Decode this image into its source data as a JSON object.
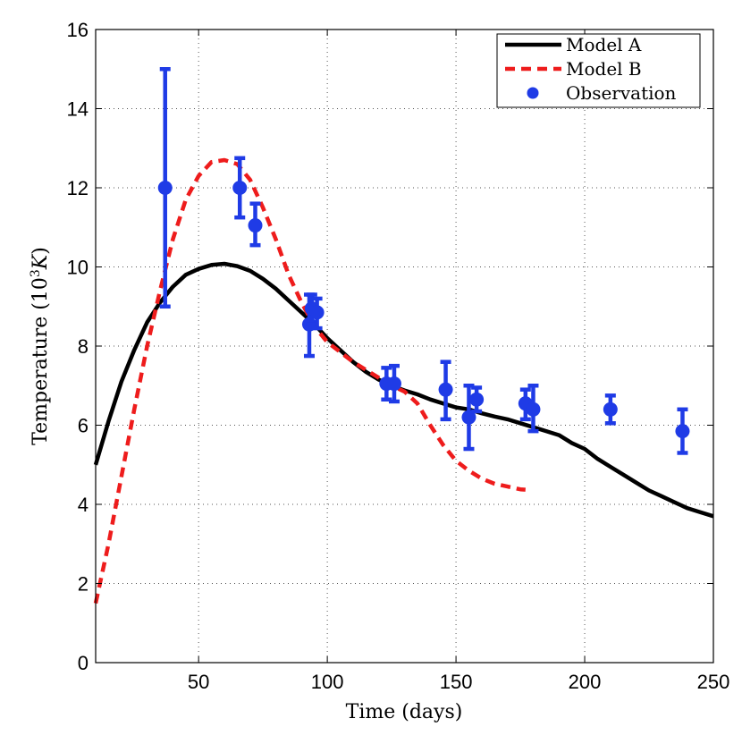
{
  "chart_data": {
    "type": "line",
    "xlabel": "Time (days)",
    "ylabel": {
      "prefix": "Temperature (10",
      "sup": "3",
      "var": "K",
      "suffix": ")"
    },
    "xlim": [
      10,
      250
    ],
    "ylim": [
      0,
      16
    ],
    "xticks": [
      50,
      100,
      150,
      200,
      250
    ],
    "yticks": [
      0,
      2,
      4,
      6,
      8,
      10,
      12,
      14,
      16
    ],
    "grid": true,
    "legend_position": "top-right",
    "series": [
      {
        "name": "Model A",
        "style": "solid",
        "color": "#000000",
        "x": [
          10,
          15,
          20,
          25,
          30,
          35,
          40,
          45,
          50,
          55,
          60,
          65,
          70,
          75,
          80,
          85,
          90,
          95,
          100,
          105,
          110,
          115,
          120,
          125,
          130,
          135,
          140,
          145,
          150,
          155,
          160,
          165,
          170,
          175,
          180,
          185,
          190,
          195,
          200,
          205,
          210,
          215,
          220,
          225,
          230,
          235,
          240,
          245,
          250
        ],
        "y": [
          5.0,
          6.1,
          7.1,
          7.9,
          8.6,
          9.1,
          9.5,
          9.8,
          9.95,
          10.05,
          10.08,
          10.02,
          9.9,
          9.7,
          9.45,
          9.15,
          8.85,
          8.55,
          8.2,
          7.9,
          7.6,
          7.35,
          7.15,
          7.0,
          6.88,
          6.78,
          6.65,
          6.55,
          6.45,
          6.4,
          6.3,
          6.22,
          6.15,
          6.05,
          5.95,
          5.85,
          5.75,
          5.55,
          5.4,
          5.15,
          4.95,
          4.75,
          4.55,
          4.35,
          4.2,
          4.05,
          3.9,
          3.8,
          3.7
        ]
      },
      {
        "name": "Model B",
        "style": "dashed",
        "color": "#ee1c1c",
        "x": [
          10,
          15,
          20,
          25,
          30,
          35,
          40,
          45,
          50,
          55,
          60,
          65,
          70,
          75,
          80,
          85,
          90,
          95,
          100,
          105,
          110,
          115,
          120,
          125,
          130,
          135,
          140,
          145,
          150,
          155,
          160,
          165,
          170,
          175,
          177
        ],
        "y": [
          1.5,
          3.0,
          4.7,
          6.4,
          8.0,
          9.4,
          10.7,
          11.7,
          12.3,
          12.65,
          12.7,
          12.6,
          12.2,
          11.5,
          10.7,
          9.8,
          9.1,
          8.5,
          8.1,
          7.85,
          7.6,
          7.4,
          7.2,
          7.0,
          6.85,
          6.55,
          6.0,
          5.5,
          5.1,
          4.85,
          4.65,
          4.52,
          4.45,
          4.38,
          4.37
        ]
      }
    ],
    "observations": {
      "name": "Observation",
      "color": "#1f3be6",
      "points": [
        {
          "x": 37,
          "y": 12.0,
          "lo": 9.0,
          "hi": 15.0
        },
        {
          "x": 66,
          "y": 12.0,
          "lo": 11.25,
          "hi": 12.75
        },
        {
          "x": 72,
          "y": 11.05,
          "lo": 10.55,
          "hi": 11.6
        },
        {
          "x": 93,
          "y": 8.55,
          "lo": 7.75,
          "hi": 9.3
        },
        {
          "x": 94,
          "y": 8.95,
          "lo": 8.55,
          "hi": 9.3
        },
        {
          "x": 96,
          "y": 8.85,
          "lo": 8.45,
          "hi": 9.2
        },
        {
          "x": 123,
          "y": 7.05,
          "lo": 6.65,
          "hi": 7.45
        },
        {
          "x": 126,
          "y": 7.05,
          "lo": 6.6,
          "hi": 7.5
        },
        {
          "x": 146,
          "y": 6.9,
          "lo": 6.15,
          "hi": 7.6
        },
        {
          "x": 155,
          "y": 6.2,
          "lo": 5.4,
          "hi": 7.0
        },
        {
          "x": 158,
          "y": 6.65,
          "lo": 6.35,
          "hi": 6.95
        },
        {
          "x": 177,
          "y": 6.55,
          "lo": 6.15,
          "hi": 6.9
        },
        {
          "x": 180,
          "y": 6.4,
          "lo": 5.85,
          "hi": 7.0
        },
        {
          "x": 210,
          "y": 6.4,
          "lo": 6.05,
          "hi": 6.75
        },
        {
          "x": 238,
          "y": 5.85,
          "lo": 5.3,
          "hi": 6.4
        }
      ]
    }
  }
}
